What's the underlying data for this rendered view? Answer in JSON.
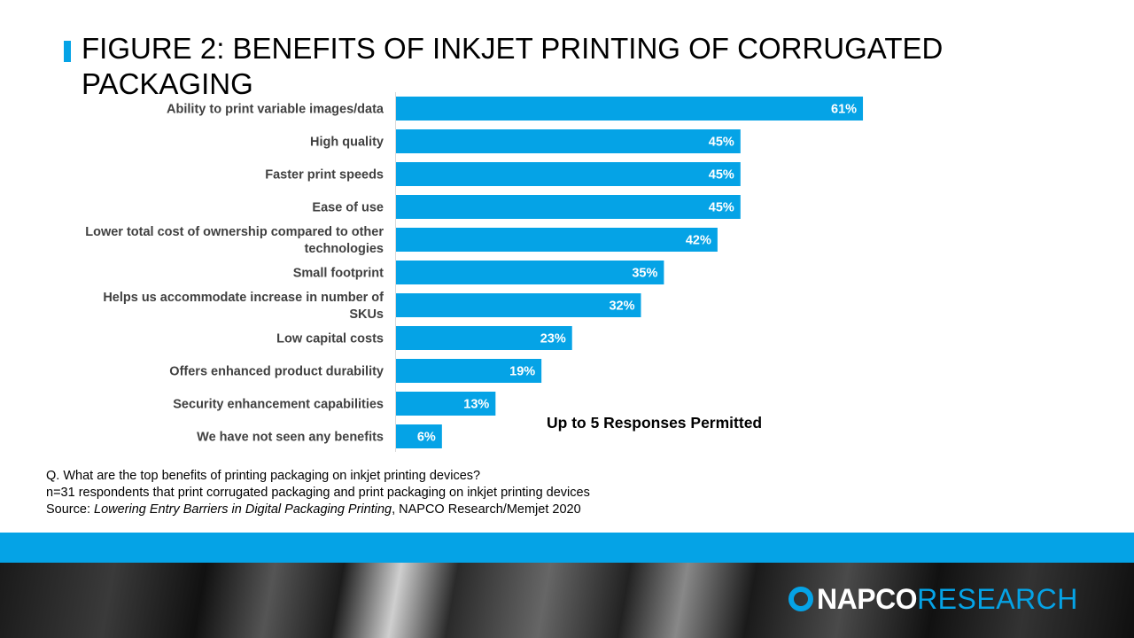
{
  "title": "FIGURE 2: BENEFITS OF INKJET PRINTING OF CORRUGATED PACKAGING",
  "note": "Up to 5 Responses Permitted",
  "footnotes": {
    "question": "Q. What are the top benefits of printing packaging on inkjet printing devices?",
    "sample": "n=31 respondents that print corrugated packaging and print packaging on inkjet printing devices",
    "source_prefix": "Source: ",
    "source_title": "Lowering Entry Barriers in Digital Packaging Printing",
    "source_suffix": ", NAPCO Research/Memjet  2020"
  },
  "logo": {
    "word1": "NAPCO",
    "word2": "RESEARCH"
  },
  "colors": {
    "bar": "#05a3e6",
    "band": "#05a3e6",
    "category_text": "#404040"
  },
  "chart_data": {
    "type": "bar",
    "orientation": "horizontal",
    "categories": [
      [
        "Ability to print variable images/data"
      ],
      [
        "High quality"
      ],
      [
        "Faster print speeds"
      ],
      [
        "Ease of use"
      ],
      [
        "Lower total cost of ownership compared to other",
        "technologies"
      ],
      [
        "Small footprint"
      ],
      [
        "Helps us accommodate increase in number of",
        "SKUs"
      ],
      [
        "Low capital costs"
      ],
      [
        "Offers enhanced product durability"
      ],
      [
        "Security enhancement capabilities"
      ],
      [
        "We have not seen any benefits"
      ]
    ],
    "values": [
      61,
      45,
      45,
      45,
      42,
      35,
      32,
      23,
      19,
      13,
      6
    ],
    "value_suffix": "%",
    "xlim": [
      0,
      100
    ],
    "grid": false,
    "legend": "none"
  }
}
